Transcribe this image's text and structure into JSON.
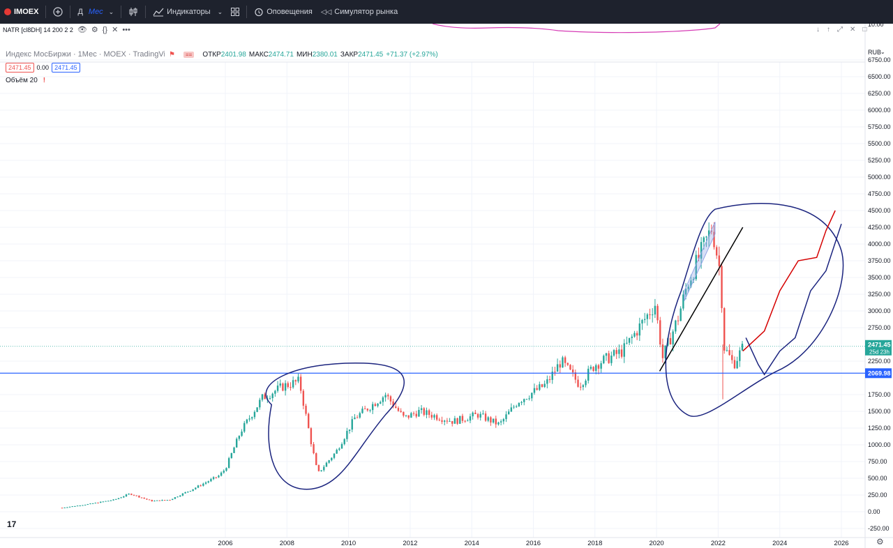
{
  "toolbar": {
    "symbol": "IMOEX",
    "add_icon": "plus-circle-icon",
    "interval_short": "Д",
    "interval": "Мес",
    "indicators_label": "Индикаторы",
    "alerts_label": "Оповещения",
    "replay_label": "Симулятор рынка"
  },
  "indicator_pane": {
    "label": "NATR [cl8DH] 14 200 2 2",
    "value_tick": "10.00"
  },
  "legend": {
    "title": "Индекс МосБиржи · 1Мес · MOEX · TradingView",
    "open_label": "ОТКР",
    "open": "2401.98",
    "high_label": "МАКС",
    "high": "2474.71",
    "low_label": "МИН",
    "low": "2380.01",
    "close_label": "ЗАКР",
    "close": "2471.45",
    "change": "+71.37 (+2.97%)",
    "bid": "2471.45",
    "spread": "0.00",
    "ask": "2471.45",
    "volume_label": "Объём 20"
  },
  "price_axis": {
    "currency": "RUB",
    "last_price": "2471.45",
    "countdown": "25d 23h",
    "line_price": "2069.98"
  },
  "colors": {
    "up": "#26a69a",
    "down": "#ef5350",
    "annotation_blue": "#1a237e",
    "hline": "#2962ff",
    "annotation_red": "#d50000",
    "channel": "#90a4e6"
  },
  "chart_data": {
    "type": "candlestick",
    "title": "Индекс МосБиржи · 1Мес · MOEX",
    "x_ticks": [
      "2006",
      "2008",
      "2010",
      "2012",
      "2014",
      "2016",
      "2018",
      "2020",
      "2022",
      "2024",
      "2026"
    ],
    "y_ticks": [
      "6750.00",
      "6500.00",
      "6250.00",
      "6000.00",
      "5750.00",
      "5500.00",
      "5250.00",
      "5000.00",
      "4750.00",
      "4500.00",
      "4250.00",
      "4000.00",
      "3750.00",
      "3500.00",
      "3250.00",
      "3000.00",
      "2750.00",
      "2250.00",
      "1750.00",
      "1500.00",
      "1250.00",
      "1000.00",
      "750.00",
      "500.00",
      "250.00",
      "0.00",
      "-250.00"
    ],
    "ylim": [
      -250,
      6750
    ],
    "xlim": [
      2000.3,
      2026.7
    ],
    "horizontal_line": 2069.98,
    "last_close": 2471.45,
    "series": [
      {
        "date": 2000.7,
        "value": 60
      },
      {
        "date": 2001.5,
        "value": 110
      },
      {
        "date": 2002.4,
        "value": 180
      },
      {
        "date": 2002.9,
        "value": 270
      },
      {
        "date": 2003.6,
        "value": 160
      },
      {
        "date": 2004.2,
        "value": 180
      },
      {
        "date": 2004.9,
        "value": 330
      },
      {
        "date": 2005.8,
        "value": 540
      },
      {
        "date": 2006.0,
        "value": 640
      },
      {
        "date": 2006.5,
        "value": 1200
      },
      {
        "date": 2007.2,
        "value": 1700
      },
      {
        "date": 2007.9,
        "value": 1880
      },
      {
        "date": 2008.4,
        "value": 1950
      },
      {
        "date": 2008.8,
        "value": 1000
      },
      {
        "date": 2009.0,
        "value": 570
      },
      {
        "date": 2009.6,
        "value": 900
      },
      {
        "date": 2010.2,
        "value": 1400
      },
      {
        "date": 2011.2,
        "value": 1750
      },
      {
        "date": 2011.8,
        "value": 1400
      },
      {
        "date": 2012.3,
        "value": 1500
      },
      {
        "date": 2013.4,
        "value": 1350
      },
      {
        "date": 2014.2,
        "value": 1450
      },
      {
        "date": 2014.9,
        "value": 1300
      },
      {
        "date": 2015.5,
        "value": 1650
      },
      {
        "date": 2016.4,
        "value": 1900
      },
      {
        "date": 2016.9,
        "value": 2250
      },
      {
        "date": 2017.5,
        "value": 1900
      },
      {
        "date": 2018.0,
        "value": 2200
      },
      {
        "date": 2018.9,
        "value": 2400
      },
      {
        "date": 2019.5,
        "value": 2800
      },
      {
        "date": 2019.95,
        "value": 3100
      },
      {
        "date": 2020.2,
        "value": 2300
      },
      {
        "date": 2020.7,
        "value": 2900
      },
      {
        "date": 2021.0,
        "value": 3400
      },
      {
        "date": 2021.8,
        "value": 4250
      },
      {
        "date": 2022.1,
        "value": 3500
      },
      {
        "date": 2022.15,
        "value": 2500
      },
      {
        "date": 2022.5,
        "value": 2200
      },
      {
        "date": 2022.8,
        "value": 2450
      }
    ]
  },
  "annotations": {
    "red_projection": [
      {
        "date": 2022.8,
        "value": 2400
      },
      {
        "date": 2023.5,
        "value": 2700
      },
      {
        "date": 2024.0,
        "value": 3300
      },
      {
        "date": 2024.6,
        "value": 3750
      },
      {
        "date": 2025.2,
        "value": 3800
      },
      {
        "date": 2025.5,
        "value": 4200
      },
      {
        "date": 2025.8,
        "value": 4500
      }
    ],
    "blue_projection": [
      {
        "date": 2022.9,
        "value": 2600
      },
      {
        "date": 2023.3,
        "value": 2200
      },
      {
        "date": 2023.5,
        "value": 2050
      },
      {
        "date": 2024.0,
        "value": 2400
      },
      {
        "date": 2024.5,
        "value": 2600
      },
      {
        "date": 2025.0,
        "value": 3300
      },
      {
        "date": 2025.5,
        "value": 3600
      },
      {
        "date": 2026.0,
        "value": 4300
      }
    ]
  }
}
